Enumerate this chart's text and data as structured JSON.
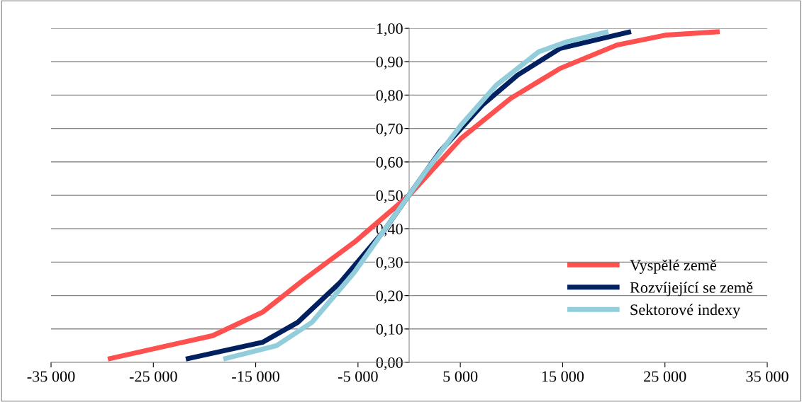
{
  "chart_data": {
    "type": "line",
    "xlim": [
      -35000,
      35000
    ],
    "xticks": [
      {
        "value": -35000,
        "label": "-35 000"
      },
      {
        "value": -25000,
        "label": "-25 000"
      },
      {
        "value": -15000,
        "label": "-15 000"
      },
      {
        "value": -5000,
        "label": "-5 000"
      },
      {
        "value": 5000,
        "label": "5 000"
      },
      {
        "value": 15000,
        "label": "15 000"
      },
      {
        "value": 25000,
        "label": "25 000"
      },
      {
        "value": 35000,
        "label": "35 000"
      }
    ],
    "ylim": [
      0,
      1
    ],
    "yticks": [
      {
        "value": 0,
        "label": "0,00"
      },
      {
        "value": 0.1,
        "label": "0,10"
      },
      {
        "value": 0.2,
        "label": "0,20"
      },
      {
        "value": 0.3,
        "label": "0,30"
      },
      {
        "value": 0.4,
        "label": "0,40"
      },
      {
        "value": 0.5,
        "label": "0,50"
      },
      {
        "value": 0.6,
        "label": "0,60"
      },
      {
        "value": 0.7,
        "label": "0,70"
      },
      {
        "value": 0.8,
        "label": "0,80"
      },
      {
        "value": 0.9,
        "label": "0,90"
      },
      {
        "value": 1,
        "label": "1,00"
      }
    ],
    "grid": "y",
    "legend": "right",
    "marker": "none",
    "line_style": "solid",
    "series": [
      {
        "name": "Vyspělé země",
        "color": "#ff5050",
        "x": [
          -29450,
          -19200,
          -14340,
          -10190,
          -5340,
          0,
          5060,
          9910,
          14760,
          20300,
          25150,
          30350
        ],
        "values": [
          0.01,
          0.08,
          0.15,
          0.25,
          0.36,
          0.5,
          0.67,
          0.79,
          0.88,
          0.95,
          0.98,
          0.99
        ]
      },
      {
        "name": "Rozvíjející se země",
        "color": "#002060",
        "x": [
          -21830,
          -14340,
          -10880,
          -6720,
          -2560,
          200,
          2980,
          7140,
          10600,
          14760,
          21690
        ],
        "values": [
          0.01,
          0.06,
          0.12,
          0.24,
          0.39,
          0.51,
          0.63,
          0.77,
          0.86,
          0.94,
          0.99
        ]
      },
      {
        "name": "Sektorové indexy",
        "color": "#92cddc",
        "x": [
          -18160,
          -12960,
          -9490,
          -5340,
          -1180,
          1590,
          5060,
          8520,
          12680,
          15450,
          19470
        ],
        "values": [
          0.01,
          0.05,
          0.12,
          0.27,
          0.45,
          0.57,
          0.71,
          0.83,
          0.93,
          0.96,
          0.99
        ]
      }
    ]
  }
}
